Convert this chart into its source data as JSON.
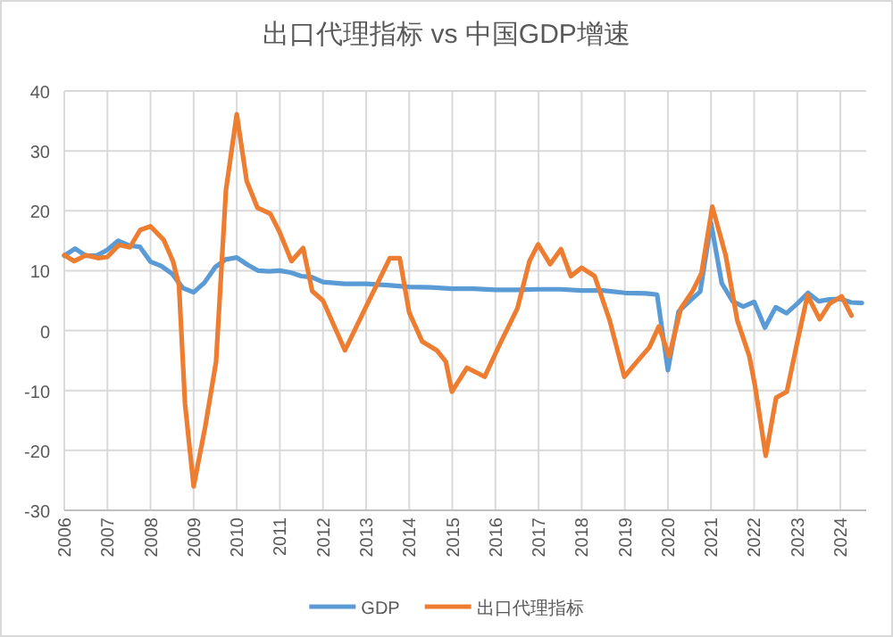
{
  "chart_data": {
    "type": "line",
    "title": "出口代理指标 vs 中国GDP增速",
    "xlim": [
      2006,
      2024.6
    ],
    "xticks": [
      2006,
      2007,
      2008,
      2009,
      2010,
      2011,
      2012,
      2013,
      2014,
      2015,
      2016,
      2017,
      2018,
      2019,
      2020,
      2021,
      2022,
      2023,
      2024
    ],
    "ylim": [
      -30,
      40
    ],
    "yticks": [
      -30,
      -20,
      -10,
      0,
      10,
      20,
      30,
      40
    ],
    "grid": true,
    "legend": "bottom",
    "series": [
      {
        "name": "GDP",
        "color": "#5b9bd5",
        "x": [
          2006,
          2006.25,
          2006.5,
          2006.75,
          2007,
          2007.25,
          2007.5,
          2007.75,
          2008,
          2008.25,
          2008.5,
          2008.75,
          2009,
          2009.25,
          2009.5,
          2009.75,
          2010,
          2010.25,
          2010.5,
          2010.75,
          2011,
          2011.25,
          2011.5,
          2011.75,
          2012,
          2012.5,
          2013,
          2013.5,
          2014,
          2014.5,
          2015,
          2015.5,
          2016,
          2016.5,
          2017,
          2017.5,
          2018,
          2018.5,
          2019,
          2019.5,
          2019.75,
          2020,
          2020.25,
          2020.5,
          2020.75,
          2021,
          2021.25,
          2021.5,
          2021.75,
          2022,
          2022.25,
          2022.5,
          2022.75,
          2023,
          2023.25,
          2023.5,
          2023.75,
          2024,
          2024.25,
          2024.5
        ],
        "values": [
          12.5,
          13.7,
          12.5,
          12.5,
          13.5,
          15,
          14.2,
          14,
          11.5,
          10.8,
          9.5,
          7.1,
          6.4,
          8,
          10.6,
          11.9,
          12.2,
          11,
          10,
          9.9,
          10,
          9.7,
          9.1,
          8.9,
          8.1,
          7.8,
          7.8,
          7.6,
          7.3,
          7.2,
          7,
          7,
          6.8,
          6.8,
          6.9,
          6.9,
          6.7,
          6.7,
          6.3,
          6.2,
          6,
          -6.6,
          3.2,
          4.9,
          6.5,
          18,
          7.9,
          4.9,
          4,
          4.8,
          0.5,
          3.9,
          2.9,
          4.5,
          6.3,
          4.9,
          5.2,
          5.3,
          4.7,
          4.6
        ]
      },
      {
        "name": "出口代理指标",
        "color": "#ed7d31",
        "x": [
          2006,
          2006.23,
          2006.51,
          2006.78,
          2007,
          2007.27,
          2007.52,
          2007.76,
          2008,
          2008.31,
          2008.52,
          2008.66,
          2008.8,
          2009,
          2009.27,
          2009.52,
          2009.75,
          2010,
          2010.23,
          2010.48,
          2010.78,
          2010.99,
          2011.27,
          2011.54,
          2011.75,
          2012,
          2012.51,
          2013,
          2013.55,
          2013.78,
          2014,
          2014.3,
          2014.64,
          2014.85,
          2014.99,
          2015.34,
          2015.75,
          2016.1,
          2016.51,
          2016.79,
          2016.99,
          2017.27,
          2017.52,
          2017.75,
          2018,
          2018.3,
          2018.65,
          2018.99,
          2019.27,
          2019.57,
          2019.79,
          2020.03,
          2020.3,
          2020.58,
          2020.78,
          2021.03,
          2021.34,
          2021.61,
          2021.89,
          2022.02,
          2022.27,
          2022.51,
          2022.76,
          2022.99,
          2023.24,
          2023.52,
          2023.75,
          2024.03,
          2024.26
        ],
        "values": [
          12.6,
          11.6,
          12.6,
          12.1,
          12.3,
          14.3,
          13.9,
          16.8,
          17.4,
          15.1,
          11.6,
          7.6,
          -12.2,
          -26,
          -16,
          -5.2,
          23.5,
          36.1,
          25,
          20.5,
          19.5,
          16.5,
          11.6,
          13.8,
          6.6,
          5,
          -3.3,
          4,
          12.1,
          12.1,
          3,
          -1.8,
          -3.3,
          -5.2,
          -10.2,
          -6.2,
          -7.7,
          -2.3,
          3.7,
          11.6,
          14.4,
          11.1,
          13.6,
          9.1,
          10.5,
          9.1,
          1.7,
          -7.7,
          -5.3,
          -2.8,
          0.7,
          -4.3,
          3.7,
          6.7,
          9.6,
          20.7,
          12.6,
          1.7,
          -4.3,
          -9.2,
          -20.9,
          -11.2,
          -10.2,
          -2.3,
          5.9,
          1.9,
          4.5,
          5.7,
          2.5
        ]
      }
    ]
  }
}
